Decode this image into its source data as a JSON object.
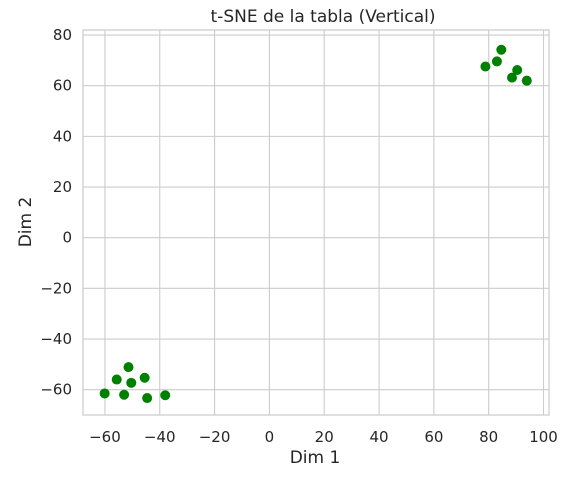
{
  "chart_data": {
    "type": "scatter",
    "title": "t-SNE de la tabla (Vertical)",
    "xlabel": "Dim 1",
    "ylabel": "Dim 2",
    "xlim": [
      -68,
      102
    ],
    "ylim": [
      -70,
      82
    ],
    "xticks": [
      -60,
      -40,
      -20,
      0,
      20,
      40,
      60,
      80,
      100
    ],
    "yticks": [
      -60,
      -40,
      -20,
      0,
      20,
      40,
      60,
      80
    ],
    "xtick_labels": [
      "−60",
      "−40",
      "−20",
      "0",
      "20",
      "40",
      "60",
      "80",
      "100"
    ],
    "ytick_labels": [
      "−60",
      "−40",
      "−20",
      "0",
      "20",
      "40",
      "60",
      "80"
    ],
    "grid": true,
    "marker_color": "#008000",
    "points": [
      {
        "x": -60.1,
        "y": -61.5
      },
      {
        "x": -55.7,
        "y": -56.0
      },
      {
        "x": -53.0,
        "y": -62.0
      },
      {
        "x": -51.4,
        "y": -51.1
      },
      {
        "x": -50.4,
        "y": -57.3
      },
      {
        "x": -45.5,
        "y": -55.3
      },
      {
        "x": -44.6,
        "y": -63.3
      },
      {
        "x": -38.0,
        "y": -62.2
      },
      {
        "x": 78.8,
        "y": 67.6
      },
      {
        "x": 83.0,
        "y": 69.6
      },
      {
        "x": 84.6,
        "y": 74.2
      },
      {
        "x": 88.5,
        "y": 63.2
      },
      {
        "x": 90.4,
        "y": 66.2
      },
      {
        "x": 93.9,
        "y": 62.0
      }
    ]
  }
}
